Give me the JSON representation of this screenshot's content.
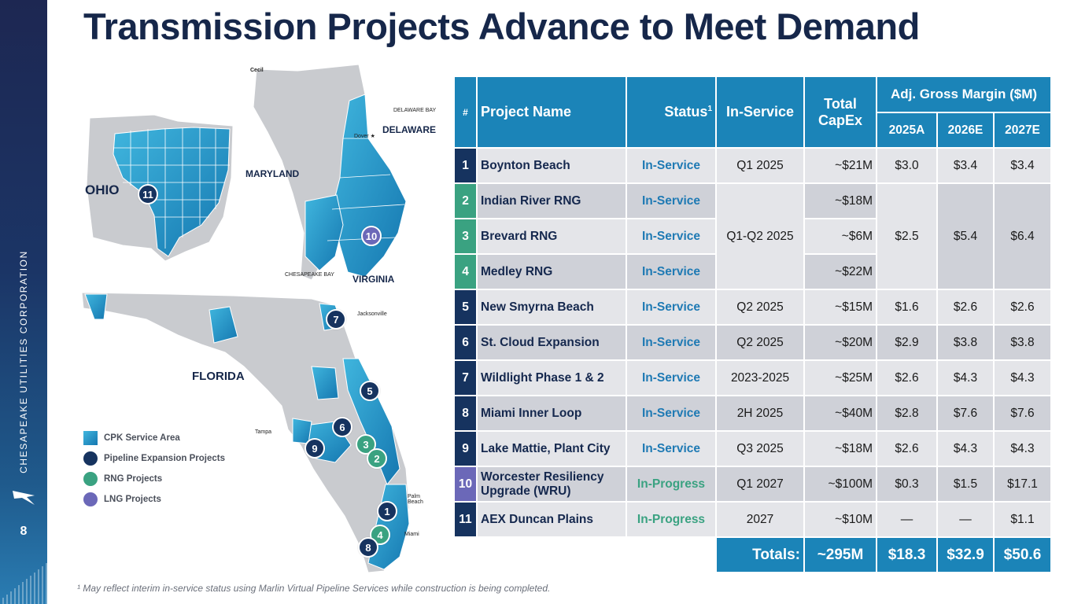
{
  "slide": {
    "title": "Transmission Projects Advance to Meet Demand",
    "page_number": "8",
    "company_vertical": "CHESAPEAKE UTILITIES CORPORATION",
    "footnote": "¹ May reflect interim in-service status using Marlin Virtual Pipeline Services while construction is being completed."
  },
  "map": {
    "state_labels": {
      "ohio": "OHIO",
      "maryland": "MARYLAND",
      "delaware": "DELAWARE",
      "virginia": "VIRGINIA",
      "florida": "FLORIDA"
    },
    "place_labels": {
      "cecil": "Cecil",
      "delaware_bay": "DELAWARE BAY",
      "dover": "Dover ★",
      "chesapeake_bay": "CHESAPEAKE BAY",
      "jacksonville": "Jacksonville",
      "tampa": "Tampa",
      "palm_beach": "Palm\nBeach",
      "miami": "Miami"
    },
    "markers": [
      {
        "label": "11",
        "type": "pipeline"
      },
      {
        "label": "10",
        "type": "lng"
      },
      {
        "label": "7",
        "type": "pipeline"
      },
      {
        "label": "5",
        "type": "pipeline"
      },
      {
        "label": "6",
        "type": "pipeline"
      },
      {
        "label": "9",
        "type": "pipeline"
      },
      {
        "label": "3",
        "type": "rng"
      },
      {
        "label": "2",
        "type": "rng"
      },
      {
        "label": "1",
        "type": "pipeline"
      },
      {
        "label": "4",
        "type": "rng"
      },
      {
        "label": "8",
        "type": "pipeline"
      }
    ],
    "legend": [
      {
        "label": "CPK Service Area",
        "color": "#1b84b8",
        "shape": "square"
      },
      {
        "label": "Pipeline Expansion Projects",
        "color": "#16335f",
        "shape": "dot"
      },
      {
        "label": "RNG Projects",
        "color": "#3aa281",
        "shape": "dot"
      },
      {
        "label": "LNG Projects",
        "color": "#6b68b8",
        "shape": "dot"
      }
    ]
  },
  "table": {
    "headers": {
      "num": "#",
      "project_name": "Project Name",
      "status": "Status",
      "status_sup": "1",
      "in_service": "In-Service",
      "total_capex": "Total CapEx",
      "adj_gross_margin": "Adj. Gross Margin ($M)",
      "y2025": "2025A",
      "y2026": "2026E",
      "y2027": "2027E"
    },
    "rows": [
      {
        "num": "1",
        "name": "Boynton Beach",
        "status": "In-Service",
        "in_service": "Q1 2025",
        "capex": "~$21M",
        "m2025": "$3.0",
        "m2026": "$3.4",
        "m2027": "$3.4"
      },
      {
        "num": "2",
        "name": "Indian River RNG",
        "status": "In-Service",
        "in_service": "",
        "capex": "~$18M",
        "m2025": "",
        "m2026": "",
        "m2027": ""
      },
      {
        "num": "3",
        "name": "Brevard RNG",
        "status": "In-Service",
        "in_service": "",
        "capex": "~$6M",
        "m2025": "",
        "m2026": "",
        "m2027": ""
      },
      {
        "num": "4",
        "name": "Medley RNG",
        "status": "In-Service",
        "in_service": "",
        "capex": "~$22M",
        "m2025": "",
        "m2026": "",
        "m2027": ""
      },
      {
        "num": "5",
        "name": "New Smyrna Beach",
        "status": "In-Service",
        "in_service": "Q2 2025",
        "capex": "~$15M",
        "m2025": "$1.6",
        "m2026": "$2.6",
        "m2027": "$2.6"
      },
      {
        "num": "6",
        "name": "St. Cloud Expansion",
        "status": "In-Service",
        "in_service": "Q2 2025",
        "capex": "~$20M",
        "m2025": "$2.9",
        "m2026": "$3.8",
        "m2027": "$3.8"
      },
      {
        "num": "7",
        "name": "Wildlight Phase 1 & 2",
        "status": "In-Service",
        "in_service": "2023-2025",
        "capex": "~$25M",
        "m2025": "$2.6",
        "m2026": "$4.3",
        "m2027": "$4.3"
      },
      {
        "num": "8",
        "name": "Miami Inner Loop",
        "status": "In-Service",
        "in_service": "2H 2025",
        "capex": "~$40M",
        "m2025": "$2.8",
        "m2026": "$7.6",
        "m2027": "$7.6"
      },
      {
        "num": "9",
        "name": "Lake Mattie, Plant City",
        "status": "In-Service",
        "in_service": "Q3 2025",
        "capex": "~$18M",
        "m2025": "$2.6",
        "m2026": "$4.3",
        "m2027": "$4.3"
      },
      {
        "num": "10",
        "name": "Worcester Resiliency Upgrade (WRU)",
        "status": "In-Progress",
        "in_service": "Q1 2027",
        "capex": "~$100M",
        "m2025": "$0.3",
        "m2026": "$1.5",
        "m2027": "$17.1"
      },
      {
        "num": "11",
        "name": "AEX Duncan Plains",
        "status": "In-Progress",
        "in_service": "2027",
        "capex": "~$10M",
        "m2025": "—",
        "m2026": "—",
        "m2027": "$1.1"
      }
    ],
    "rng_group": {
      "in_service": "Q1-Q2 2025",
      "m2025": "$2.5",
      "m2026": "$5.4",
      "m2027": "$6.4"
    },
    "totals": {
      "label": "Totals:",
      "capex": "~295M",
      "m2025": "$18.3",
      "m2026": "$32.9",
      "m2027": "$50.6"
    }
  },
  "colors": {
    "navy": "#16274a",
    "header_blue": "#1b84b8",
    "pipeline_navy": "#16335f",
    "rng_green": "#3aa281",
    "lng_purple": "#6b68b8",
    "row_light": "#e4e5e9",
    "row_dark": "#cfd1d8"
  }
}
